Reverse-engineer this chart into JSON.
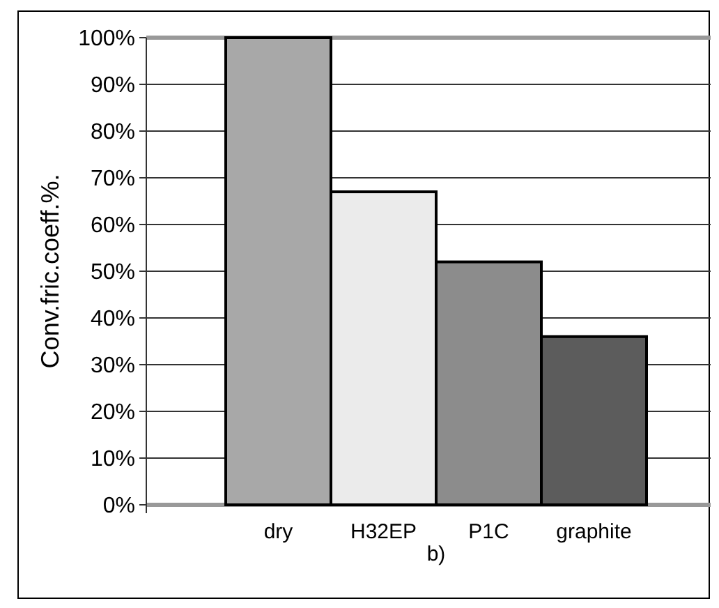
{
  "chart_data": {
    "type": "bar",
    "ylabel": "Conv.fric.coeff.%.",
    "categories": [
      "dry",
      "H32EP",
      "P1C",
      "graphite"
    ],
    "values": [
      100,
      67,
      52,
      36
    ],
    "colors": [
      "#a8a8a8",
      "#ebebeb",
      "#8c8c8c",
      "#5c5c5c"
    ],
    "ylim": [
      0,
      100
    ],
    "yticks": [
      {
        "value": 0,
        "label": "0%"
      },
      {
        "value": 10,
        "label": "10%"
      },
      {
        "value": 20,
        "label": "20%"
      },
      {
        "value": 30,
        "label": "30%"
      },
      {
        "value": 40,
        "label": "40%"
      },
      {
        "value": 50,
        "label": "50%"
      },
      {
        "value": 60,
        "label": "60%"
      },
      {
        "value": 70,
        "label": "70%"
      },
      {
        "value": 80,
        "label": "80%"
      },
      {
        "value": 90,
        "label": "90%"
      },
      {
        "value": 100,
        "label": "100%"
      }
    ],
    "grid": "y",
    "annotations": [
      "b)"
    ]
  }
}
